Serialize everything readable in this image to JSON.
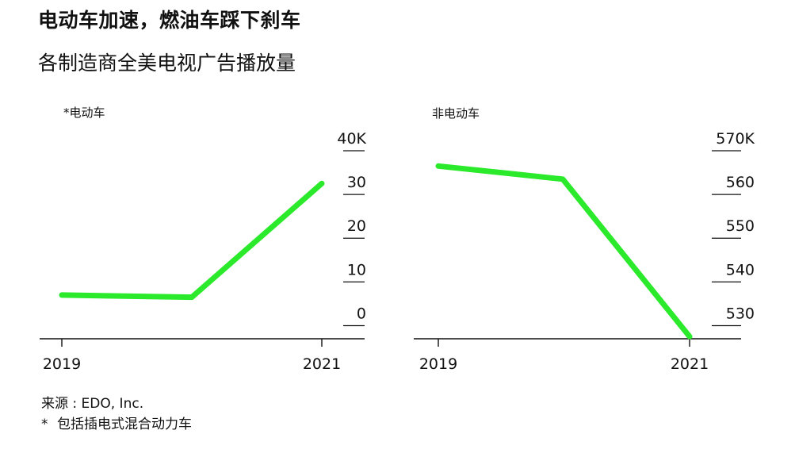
{
  "header": {
    "title": "电动车加速，燃油车踩下刹车",
    "subtitle": "各制造商全美电视广告播放量"
  },
  "footer": {
    "source": "来源 : EDO, Inc.",
    "footnote_marker": "*",
    "footnote": "包括插电式混合动力车"
  },
  "chart_data": [
    {
      "type": "line",
      "title": "*电动车",
      "x": [
        "2019",
        "2020",
        "2021"
      ],
      "x_tick_labels": [
        "2019",
        "2021"
      ],
      "series": [
        {
          "values": [
            7000,
            6500,
            32500
          ],
          "color": "#2bea2b"
        }
      ],
      "y_ticks": [
        0,
        10,
        20,
        30,
        40
      ],
      "y_tick_labels": [
        "0",
        "10",
        "20",
        "30",
        "40K"
      ],
      "ylim": [
        -3000,
        40000
      ],
      "y_axis_side": "right",
      "grid": false
    },
    {
      "type": "line",
      "title": "非电动车",
      "x": [
        "2019",
        "2020",
        "2021"
      ],
      "x_tick_labels": [
        "2019",
        "2021"
      ],
      "series": [
        {
          "values": [
            566500,
            563500,
            527500
          ],
          "color": "#2bea2b"
        }
      ],
      "y_ticks": [
        530,
        540,
        550,
        560,
        570
      ],
      "y_tick_labels": [
        "530",
        "540",
        "550",
        "560",
        "570K"
      ],
      "ylim": [
        527000,
        570000
      ],
      "y_axis_side": "right",
      "grid": false
    }
  ]
}
